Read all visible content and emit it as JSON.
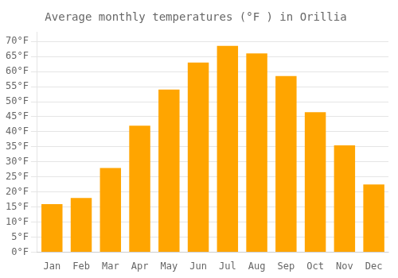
{
  "chart_data": {
    "type": "bar",
    "title": "Average monthly temperatures (°F ) in Orillia",
    "categories": [
      "Jan",
      "Feb",
      "Mar",
      "Apr",
      "May",
      "Jun",
      "Jul",
      "Aug",
      "Sep",
      "Oct",
      "Nov",
      "Dec"
    ],
    "values": [
      16,
      18,
      28,
      42,
      54,
      63,
      68.5,
      66,
      58.5,
      46.5,
      35.5,
      22.5
    ],
    "color": "#FFA500",
    "ylim": [
      0,
      73
    ],
    "yticks": [
      {
        "value": 0,
        "label": "0°F"
      },
      {
        "value": 5,
        "label": "5°F"
      },
      {
        "value": 10,
        "label": "10°F"
      },
      {
        "value": 15,
        "label": "15°F"
      },
      {
        "value": 20,
        "label": "20°F"
      },
      {
        "value": 25,
        "label": "25°F"
      },
      {
        "value": 30,
        "label": "30°F"
      },
      {
        "value": 35,
        "label": "35°F"
      },
      {
        "value": 40,
        "label": "40°F"
      },
      {
        "value": 45,
        "label": "45°F"
      },
      {
        "value": 50,
        "label": "50°F"
      },
      {
        "value": 55,
        "label": "55°F"
      },
      {
        "value": 60,
        "label": "60°F"
      },
      {
        "value": 65,
        "label": "65°F"
      },
      {
        "value": 70,
        "label": "70°F"
      }
    ],
    "grid": true
  }
}
